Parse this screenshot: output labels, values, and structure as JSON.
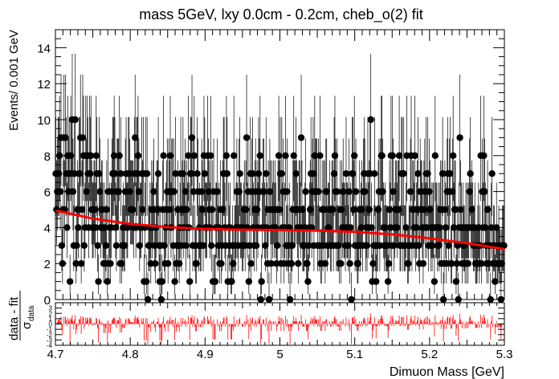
{
  "chart_data": [
    {
      "type": "scatter",
      "title": "mass 5GeV, lxy 0.0cm - 0.2cm, cheb_o(2) fit",
      "ylabel": "Events/ 0.001 GeV",
      "xlim": [
        4.7,
        5.3
      ],
      "ylim": [
        0,
        15
      ],
      "yticks": [
        "0",
        "2",
        "4",
        "6",
        "8",
        "10",
        "12",
        "14"
      ],
      "grid": false,
      "series": [
        {
          "kind": "data-points-with-poisson-errors",
          "color": "#000000",
          "bin_width": 0.001,
          "high_bins": [
            {
              "x": 4.707,
              "y": 9
            },
            {
              "x": 4.711,
              "y": 9
            },
            {
              "x": 4.713,
              "y": 9
            },
            {
              "x": 4.722,
              "y": 10
            },
            {
              "x": 4.726,
              "y": 10
            },
            {
              "x": 4.733,
              "y": 9
            },
            {
              "x": 4.736,
              "y": 9
            },
            {
              "x": 4.74,
              "y": 8
            },
            {
              "x": 4.742,
              "y": 8
            },
            {
              "x": 4.745,
              "y": 8
            },
            {
              "x": 4.785,
              "y": 8
            },
            {
              "x": 4.806,
              "y": 9
            },
            {
              "x": 4.844,
              "y": 8
            },
            {
              "x": 4.853,
              "y": 8
            },
            {
              "x": 4.882,
              "y": 9
            },
            {
              "x": 4.903,
              "y": 8
            },
            {
              "x": 4.928,
              "y": 8
            },
            {
              "x": 4.955,
              "y": 9
            },
            {
              "x": 5.007,
              "y": 8
            },
            {
              "x": 5.028,
              "y": 9
            },
            {
              "x": 5.046,
              "y": 8
            },
            {
              "x": 5.121,
              "y": 10
            },
            {
              "x": 5.136,
              "y": 8
            },
            {
              "x": 5.18,
              "y": 8
            },
            {
              "x": 5.207,
              "y": 8
            },
            {
              "x": 5.24,
              "y": 9
            },
            {
              "x": 5.268,
              "y": 8
            }
          ]
        },
        {
          "kind": "fit-curve",
          "color": "#ff0000",
          "x": [
            4.7,
            4.75,
            4.8,
            4.85,
            4.9,
            4.95,
            5.0,
            5.05,
            5.1,
            5.15,
            5.2,
            5.25,
            5.3
          ],
          "y": [
            4.95,
            4.5,
            4.2,
            4.03,
            3.92,
            3.88,
            3.86,
            3.83,
            3.76,
            3.62,
            3.4,
            3.13,
            2.8
          ]
        }
      ]
    },
    {
      "type": "bar",
      "ylabel_num": "data - fit",
      "ylabel_den": "σ",
      "ylabel_den_sub": "data",
      "xlabel": "Dimuon Mass [GeV]",
      "xlim": [
        4.7,
        5.3
      ],
      "ylim": [
        -4,
        4
      ],
      "yticks": [
        "3",
        "2",
        "1",
        "0",
        "-1",
        "-2",
        "-3",
        "-4"
      ],
      "xticks": [
        "4.7",
        "4.8",
        "4.9",
        "5",
        "5.1",
        "5.2",
        "5.3"
      ],
      "color": "#ff0000",
      "values_description_free": true
    }
  ]
}
